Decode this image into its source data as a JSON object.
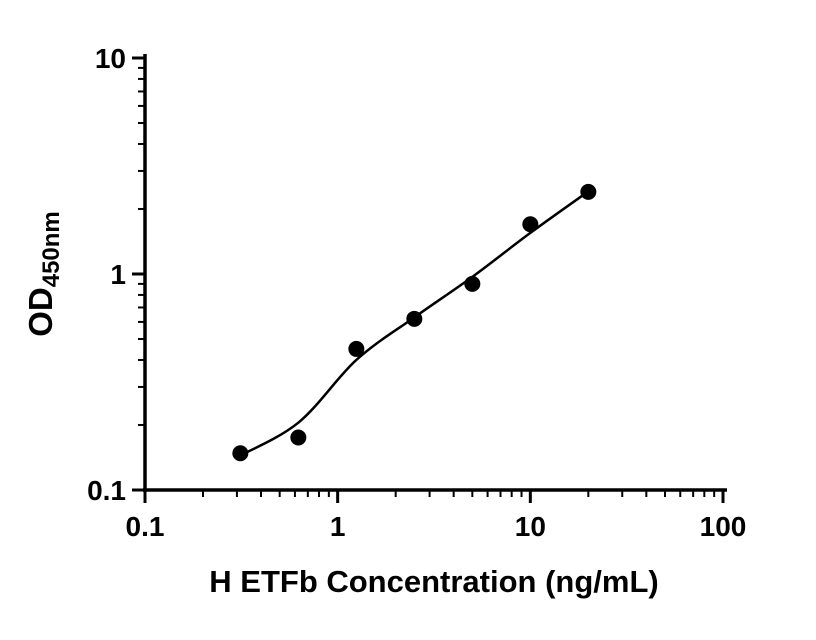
{
  "figure": {
    "background": "#ffffff",
    "axis_color": "#000000",
    "marker_color": "#000000",
    "line_color": "#000000"
  },
  "chart_data": {
    "type": "scatter",
    "title": "",
    "xlabel": "H ETFb Concentration (ng/mL)",
    "ylabel": "OD",
    "ylabel_subscript": "450nm",
    "x_scale": "log",
    "y_scale": "log",
    "xlim": [
      0.1,
      100
    ],
    "ylim": [
      0.1,
      10
    ],
    "x_ticks": [
      0.1,
      1,
      10,
      100
    ],
    "x_tick_labels": [
      "0.1",
      "1",
      "10",
      "100"
    ],
    "y_ticks": [
      0.1,
      1,
      10
    ],
    "y_tick_labels": [
      "0.1",
      "1",
      "10"
    ],
    "grid": false,
    "legend": "none",
    "series": [
      {
        "name": "fit-line",
        "type": "line",
        "color": "#000000",
        "x": [
          0.3,
          0.625,
          1.25,
          2.5,
          5,
          10,
          20.5
        ],
        "y": [
          0.142,
          0.205,
          0.4,
          0.63,
          0.97,
          1.55,
          2.45
        ]
      },
      {
        "name": "standard-points",
        "type": "scatter",
        "marker": "circle",
        "color": "#000000",
        "x": [
          0.3125,
          0.625,
          1.25,
          2.5,
          5,
          10,
          20
        ],
        "y": [
          0.148,
          0.175,
          0.45,
          0.62,
          0.9,
          1.7,
          2.4
        ]
      }
    ]
  }
}
